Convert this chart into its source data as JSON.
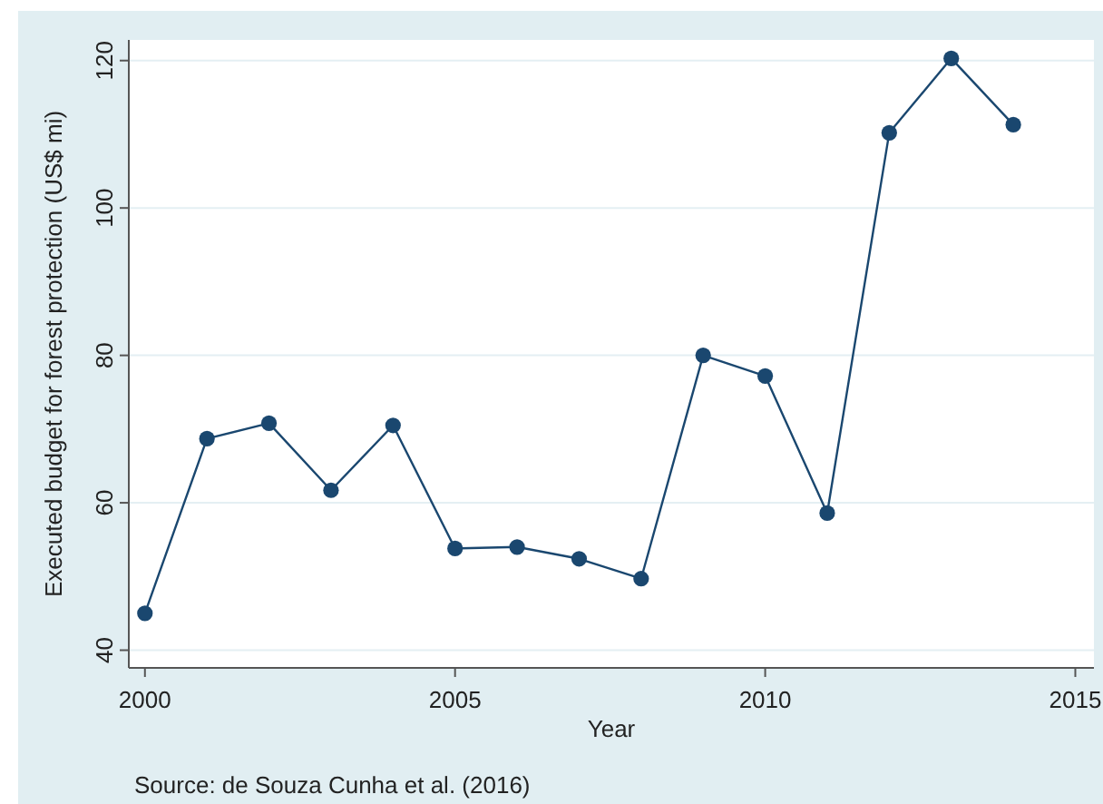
{
  "chart_data": {
    "type": "line",
    "xlabel": "Year",
    "ylabel": "Executed budget for forest protection (US$ mi)",
    "annotations": [
      "Source: de Souza Cunha et al. (2016)"
    ],
    "x": [
      2000,
      2001,
      2002,
      2003,
      2004,
      2005,
      2006,
      2007,
      2008,
      2009,
      2010,
      2011,
      2012,
      2013,
      2014
    ],
    "series": [
      {
        "color": "#1a476f",
        "values": [
          45.0,
          68.7,
          70.8,
          61.7,
          70.5,
          53.8,
          54.0,
          52.4,
          49.7,
          80.0,
          77.2,
          58.6,
          110.2,
          120.3,
          111.3
        ]
      }
    ],
    "xlim": [
      1999.74,
      2015.3
    ],
    "xticks": [
      2000,
      2005,
      2010,
      2015
    ],
    "ylim": [
      37.6,
      122.8
    ],
    "yticks": [
      40,
      60,
      80,
      100,
      120
    ],
    "grid": "y",
    "marker": "circle",
    "line_style": "solid"
  }
}
